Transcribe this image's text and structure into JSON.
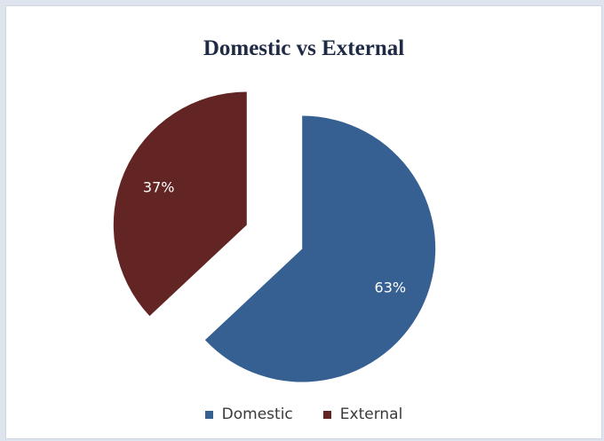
{
  "chart_data": {
    "type": "pie",
    "title": "Domestic vs External",
    "categories": [
      "Domestic",
      "External"
    ],
    "values": [
      63,
      37
    ],
    "data_labels": [
      "63%",
      "37%"
    ],
    "colors": [
      "#366092",
      "#632523"
    ],
    "exploded": true,
    "legend_position": "bottom"
  }
}
